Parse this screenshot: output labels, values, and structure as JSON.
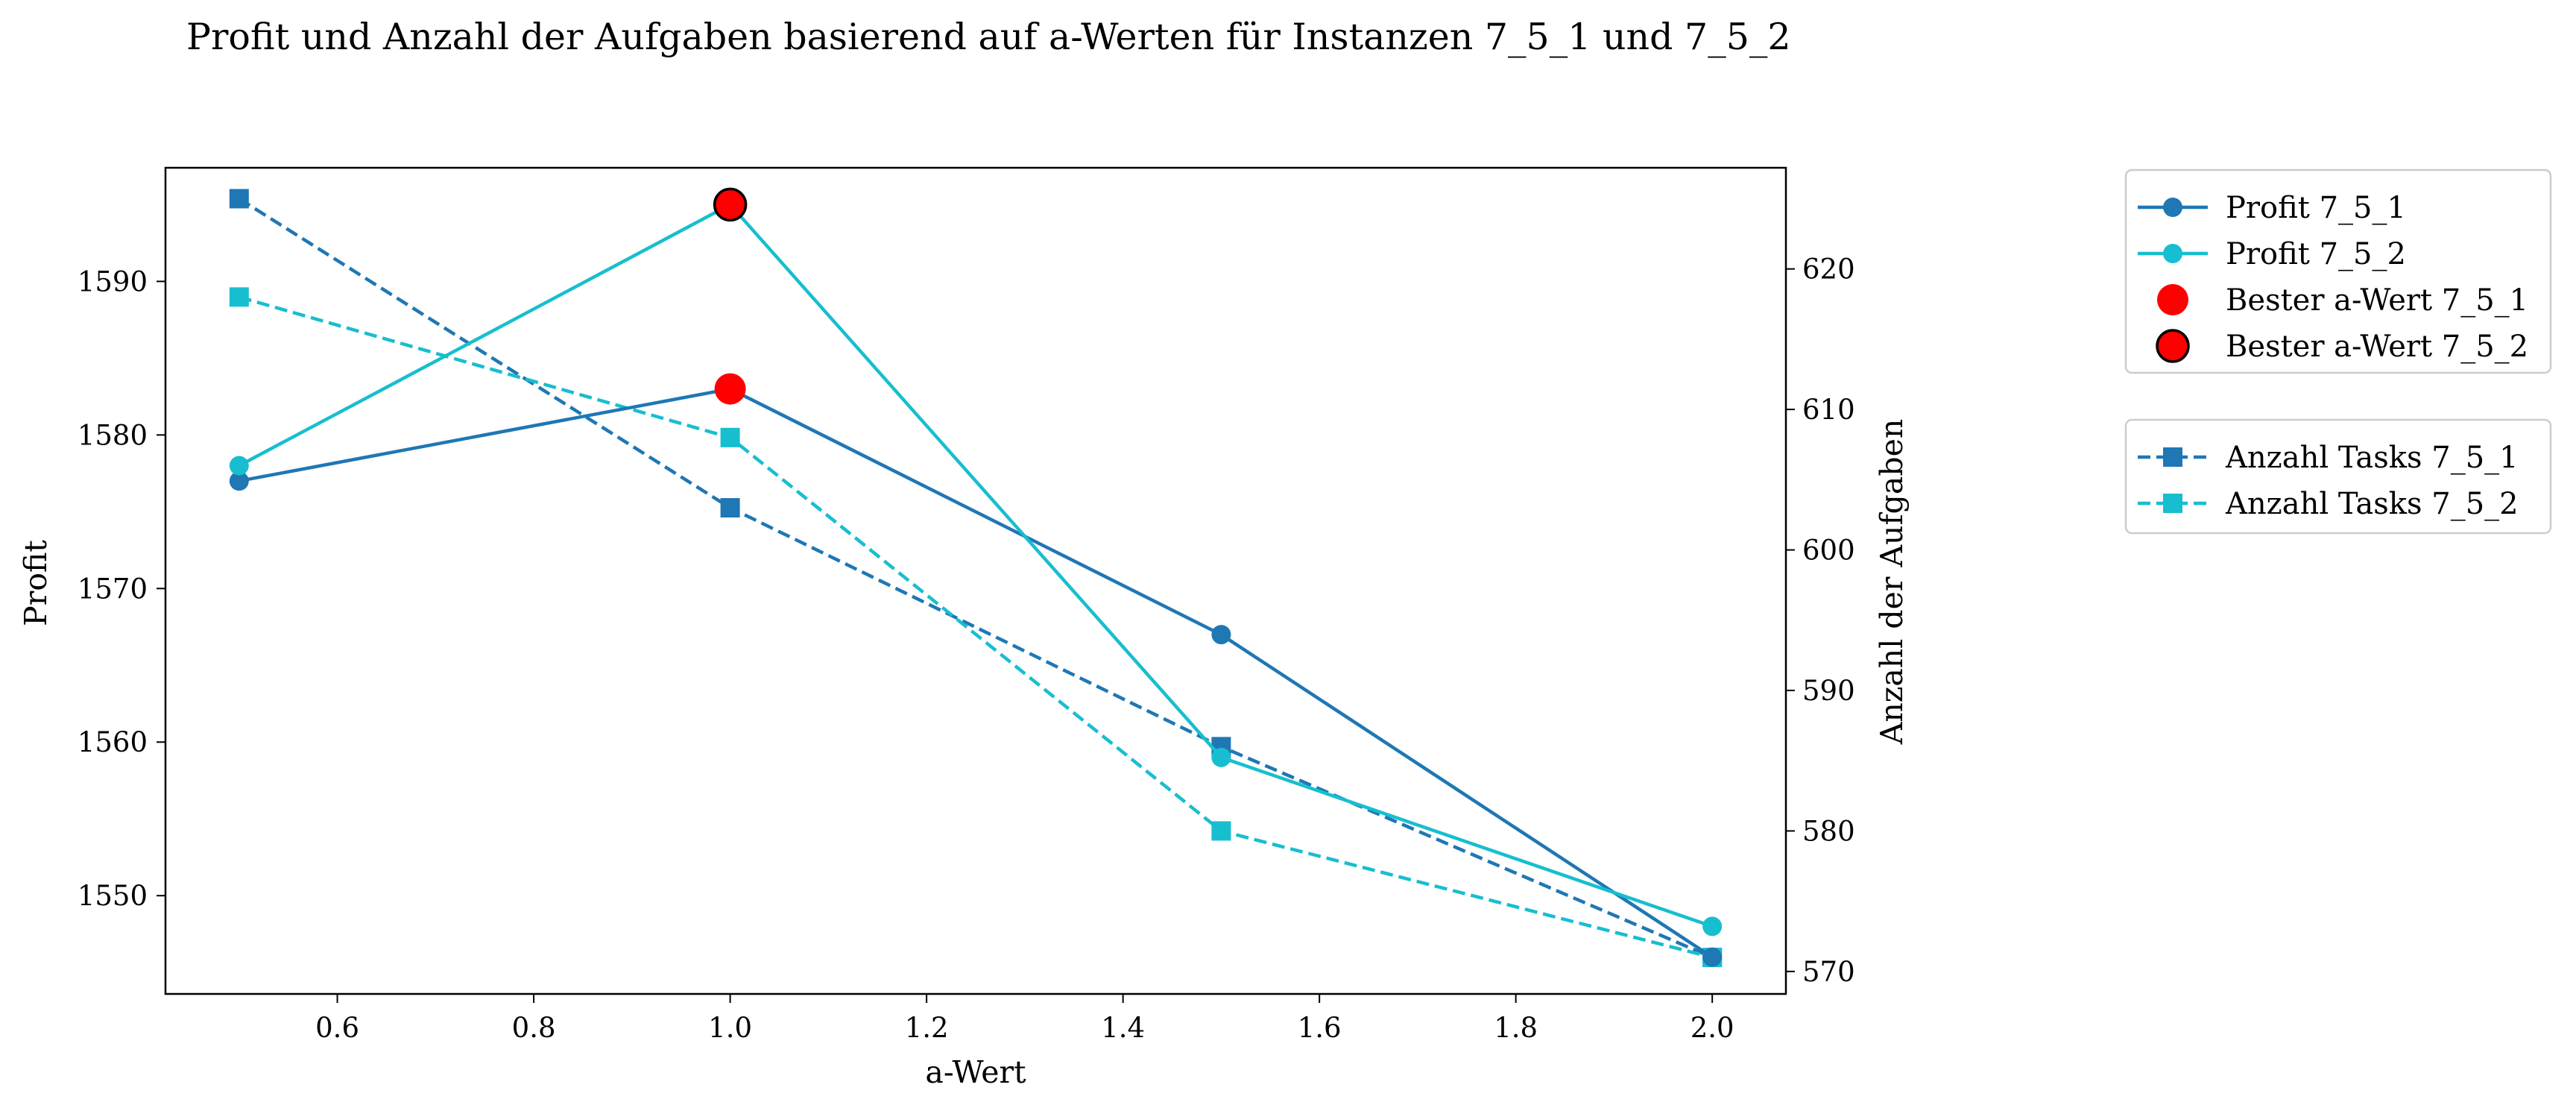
{
  "chart_data": {
    "type": "line",
    "title": "Profit und Anzahl der Aufgaben basierend auf a-Werten für Instanzen 7_5_1 und 7_5_2",
    "xlabel": "a-Wert",
    "ylabel": "Profit",
    "y2label": "Anzahl der Aufgaben",
    "x": [
      0.5,
      1.0,
      1.5,
      2.0
    ],
    "xlim": [
      0.425,
      2.075
    ],
    "ylim": [
      1543.6,
      1597.4
    ],
    "y2lim": [
      568.4,
      627.2
    ],
    "xticks": [
      "0.6",
      "0.8",
      "1.0",
      "1.2",
      "1.4",
      "1.6",
      "1.8",
      "2.0"
    ],
    "yticks": [
      "1550",
      "1560",
      "1570",
      "1580",
      "1590"
    ],
    "y2ticks": [
      "570",
      "580",
      "590",
      "600",
      "610",
      "620"
    ],
    "grid": false,
    "legend_position": "outside-right",
    "series": [
      {
        "name": "Profit 7_5_1",
        "axis": "left",
        "style": "solid",
        "marker": "circle",
        "color": "#1f77b4",
        "values": [
          1577,
          1583,
          1567,
          1546
        ]
      },
      {
        "name": "Profit 7_5_2",
        "axis": "left",
        "style": "solid",
        "marker": "circle",
        "color": "#17becf",
        "values": [
          1578,
          1595,
          1559,
          1548
        ]
      },
      {
        "name": "Anzahl Tasks 7_5_1",
        "axis": "right",
        "style": "dashed",
        "marker": "square",
        "color": "#1f77b4",
        "values": [
          625,
          603,
          586,
          571
        ]
      },
      {
        "name": "Anzahl Tasks 7_5_2",
        "axis": "right",
        "style": "dashed",
        "marker": "square",
        "color": "#17becf",
        "values": [
          618,
          608,
          580,
          571
        ]
      }
    ],
    "highlights": [
      {
        "name": "Bester a-Wert 7_5_1",
        "x": 1.0,
        "y": 1583,
        "color": "#ff0000",
        "edge": "none"
      },
      {
        "name": "Bester a-Wert 7_5_2",
        "x": 1.0,
        "y": 1595,
        "color": "#ff0000",
        "edge": "#000000"
      }
    ],
    "legend_groups": [
      [
        "Profit 7_5_1",
        "Profit 7_5_2",
        "Bester a-Wert 7_5_1",
        "Bester a-Wert 7_5_2"
      ],
      [
        "Anzahl Tasks 7_5_1",
        "Anzahl Tasks 7_5_2"
      ]
    ]
  }
}
